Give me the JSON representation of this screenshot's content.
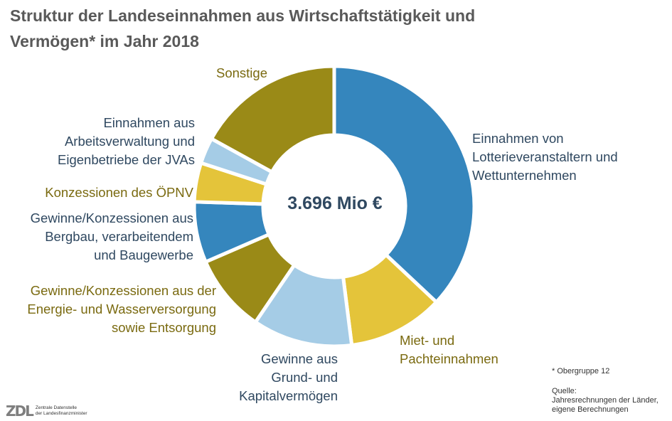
{
  "title": {
    "line1": "Struktur der Landeseinnahmen aus Wirtschaftstätigkeit  und",
    "line2": "Vermögen* im Jahr 2018"
  },
  "center_label": "3.696 Mio €",
  "footnote": "* Obergruppe 12",
  "source": {
    "line1": "Quelle:",
    "line2": "Jahresrechnungen der Länder,",
    "line3": "eigene Berechnungen"
  },
  "logo": {
    "mark": "ZDL",
    "line1": "Zentrale Datenstelle",
    "line2": "der Landesfinanzminister"
  },
  "chart_data": {
    "type": "pie",
    "variant": "donut",
    "total": "3.696 Mio €",
    "slices": [
      {
        "label_lines": [
          "Einnahmen von",
          "Lotterieveranstaltern und",
          "Wettunternehmen"
        ],
        "value": 37.0,
        "color": "#3586bd",
        "text_color": "#2f4860"
      },
      {
        "label_lines": [
          "Miet- und",
          "Pachteinnahmen"
        ],
        "value": 11.0,
        "color": "#e4c43a",
        "text_color": "#7a6a10"
      },
      {
        "label_lines": [
          "Gewinne aus",
          "Grund- und",
          "Kapitalvermögen"
        ],
        "value": 11.5,
        "color": "#a5cce6",
        "text_color": "#2f4860"
      },
      {
        "label_lines": [
          "Gewinne/Konzessionen aus der",
          "Energie- und Wasserversorgung",
          "sowie Entsorgung"
        ],
        "value": 9.0,
        "color": "#9a8a17",
        "text_color": "#7a6a10"
      },
      {
        "label_lines": [
          "Gewinne/Konzessionen aus",
          "Bergbau, verarbeitendem",
          "und Baugewerbe"
        ],
        "value": 7.0,
        "color": "#3586bd",
        "text_color": "#2f4860"
      },
      {
        "label_lines": [
          "Konzessionen des ÖPNV"
        ],
        "value": 4.5,
        "color": "#e4c43a",
        "text_color": "#7a6a10"
      },
      {
        "label_lines": [
          "Einnahmen aus",
          "Arbeitsverwaltung und",
          "Eigenbetriebe der JVAs"
        ],
        "value": 3.0,
        "color": "#a5cce6",
        "text_color": "#2f4860"
      },
      {
        "label_lines": [
          "Sonstige"
        ],
        "value": 17.0,
        "color": "#9a8a17",
        "text_color": "#7a6a10"
      }
    ],
    "legend": "none"
  }
}
